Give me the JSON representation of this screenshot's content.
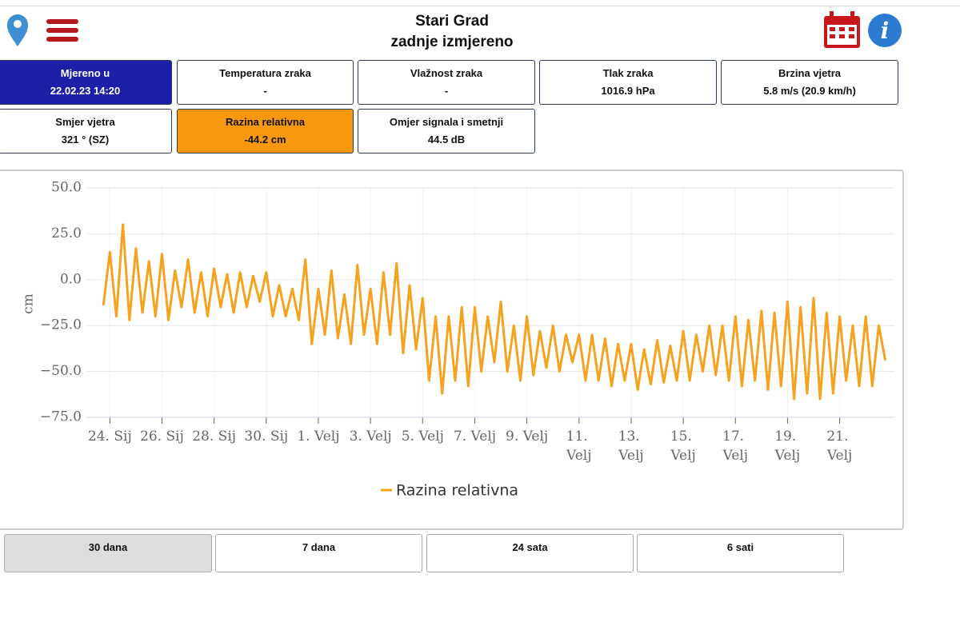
{
  "header": {
    "title": "Stari Grad",
    "subtitle": "zadnje izmjereno"
  },
  "cards": [
    {
      "label": "Mjereno u",
      "value": "22.02.23 14:20"
    },
    {
      "label": "Temperatura zraka",
      "value": "-"
    },
    {
      "label": "Vlažnost zraka",
      "value": "-"
    },
    {
      "label": "Tlak zraka",
      "value": "1016.9 hPa"
    },
    {
      "label": "Brzina vjetra",
      "value": "5.8 m/s (20.9 km/h)"
    },
    {
      "label": "Smjer vjetra",
      "value": "321 ° (SZ)"
    },
    {
      "label": "Razina relativna",
      "value": "-44.2 cm"
    },
    {
      "label": "Omjer signala i smetnji",
      "value": "44.5 dB"
    }
  ],
  "chart_data": {
    "type": "line",
    "y_label": "cm",
    "x": [
      -0.25,
      0,
      0.25,
      0.5,
      0.75,
      1,
      1.25,
      1.5,
      1.75,
      2,
      2.25,
      2.5,
      2.75,
      3,
      3.25,
      3.5,
      3.75,
      4,
      4.25,
      4.5,
      4.75,
      5,
      5.25,
      5.5,
      5.75,
      6,
      6.25,
      6.5,
      6.75,
      7,
      7.25,
      7.5,
      7.75,
      8,
      8.25,
      8.5,
      8.75,
      9,
      9.25,
      9.5,
      9.75,
      10,
      10.25,
      10.5,
      10.75,
      11,
      11.25,
      11.5,
      11.75,
      12,
      12.25,
      12.5,
      12.75,
      13,
      13.25,
      13.5,
      13.75,
      14,
      14.25,
      14.5,
      14.75,
      15,
      15.25,
      15.5,
      15.75,
      16,
      16.25,
      16.5,
      16.75,
      17,
      17.25,
      17.5,
      17.75,
      18,
      18.25,
      18.5,
      18.75,
      19,
      19.25,
      19.5,
      19.75,
      20,
      20.25,
      20.5,
      20.75,
      21,
      21.25,
      21.5,
      21.75,
      22,
      22.25,
      22.5,
      22.75,
      23,
      23.25,
      23.5,
      23.75,
      24,
      24.25,
      24.5,
      24.75,
      25,
      25.25,
      25.5,
      25.75,
      26,
      26.25,
      26.5,
      26.75,
      27,
      27.25,
      27.5,
      27.75,
      28,
      28.25,
      28.5,
      28.75,
      29,
      29.25,
      29.5,
      29.75
    ],
    "series": [
      {
        "name": "Razina relativna",
        "color": "#f5a31e",
        "values": [
          -14,
          15,
          -20,
          30,
          -22,
          17,
          -18,
          10,
          -20,
          14,
          -22,
          5,
          -15,
          11,
          -18,
          4,
          -20,
          6,
          -15,
          3,
          -18,
          4,
          -15,
          2,
          -12,
          4,
          -20,
          -3,
          -20,
          -5,
          -22,
          11,
          -35,
          -5,
          -30,
          5,
          -32,
          -8,
          -35,
          8,
          -30,
          -5,
          -35,
          4,
          -30,
          9,
          -40,
          -3,
          -38,
          -10,
          -55,
          -20,
          -62,
          -20,
          -55,
          -15,
          -58,
          -15,
          -50,
          -20,
          -45,
          -12,
          -50,
          -25,
          -55,
          -20,
          -52,
          -28,
          -48,
          -25,
          -50,
          -30,
          -45,
          -30,
          -55,
          -30,
          -55,
          -32,
          -58,
          -35,
          -55,
          -35,
          -60,
          -38,
          -57,
          -33,
          -56,
          -36,
          -55,
          -28,
          -55,
          -30,
          -50,
          -25,
          -52,
          -25,
          -55,
          -20,
          -58,
          -22,
          -55,
          -17,
          -60,
          -18,
          -58,
          -12,
          -65,
          -15,
          -62,
          -10,
          -65,
          -18,
          -62,
          -20,
          -55,
          -25,
          -58,
          -20,
          -58,
          -25,
          -44
        ]
      }
    ],
    "xlim": [
      -0.9,
      30.1
    ],
    "xticks": [
      {
        "value": 0,
        "label": "24. Sij"
      },
      {
        "value": 2,
        "label": "26. Sij"
      },
      {
        "value": 4,
        "label": "28. Sij"
      },
      {
        "value": 6,
        "label": "30. Sij"
      },
      {
        "value": 8,
        "label": "1. Velj"
      },
      {
        "value": 10,
        "label": "3. Velj"
      },
      {
        "value": 12,
        "label": "5. Velj"
      },
      {
        "value": 14,
        "label": "7. Velj"
      },
      {
        "value": 16,
        "label": "9. Velj"
      },
      {
        "value": 18,
        "label": "11. Velj"
      },
      {
        "value": 20,
        "label": "13. Velj"
      },
      {
        "value": 22,
        "label": "15. Velj"
      },
      {
        "value": 24,
        "label": "17. Velj"
      },
      {
        "value": 26,
        "label": "19. Velj"
      },
      {
        "value": 28,
        "label": "21. Velj"
      }
    ],
    "ylim": [
      -75,
      50
    ],
    "yticks": [
      {
        "value": 50,
        "label": "50.0"
      },
      {
        "value": 25,
        "label": "25.0"
      },
      {
        "value": 0,
        "label": "0.0"
      },
      {
        "value": -25,
        "label": "−25.0"
      },
      {
        "value": -50,
        "label": "−50.0"
      },
      {
        "value": -75,
        "label": "−75.0"
      }
    ],
    "grid": true
  },
  "buttons": [
    "30 dana",
    "7 dana",
    "24 sata",
    "6 sati"
  ]
}
